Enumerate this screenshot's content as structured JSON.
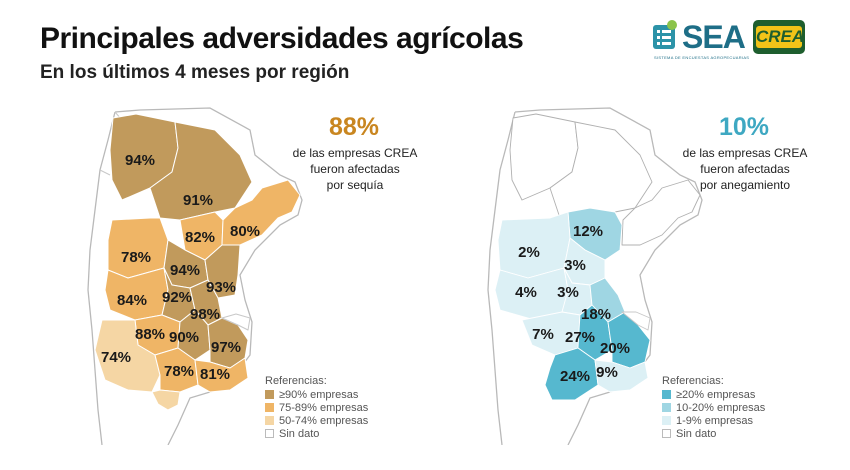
{
  "header": {
    "title": "Principales adversidades agrícolas",
    "subtitle": "En los últimos 4 meses por región"
  },
  "logos": {
    "sea": {
      "word": "SEA",
      "tagline": "SISTEMA DE ENCUESTAS AGROPECUARIAS"
    },
    "crea": {
      "word": "CREA"
    }
  },
  "colors": {
    "drought_high": "#c19a5c",
    "drought_mid": "#efb566",
    "drought_low": "#f5d6a4",
    "flood_high": "#56b8cf",
    "flood_mid": "#9fd6e3",
    "flood_low": "#dcf0f5",
    "no_data": "#ffffff",
    "drought_text": "#c98620",
    "flood_text": "#3ea8c2"
  },
  "drought_panel": {
    "stat_value": "88%",
    "stat_text": [
      "de las empresas CREA",
      "fueron afectadas",
      "por sequía"
    ],
    "legend_title": "Referencias:",
    "legend": [
      {
        "label": "≥90% empresas",
        "color": "#c19a5c"
      },
      {
        "label": "75-89% empresas",
        "color": "#efb566"
      },
      {
        "label": "50-74% empresas",
        "color": "#f5d6a4"
      },
      {
        "label": "Sin dato",
        "color": "#ffffff"
      }
    ],
    "regions": [
      {
        "label": "94%",
        "cls": "high"
      },
      {
        "label": "91%",
        "cls": "high"
      },
      {
        "label": "82%",
        "cls": "mid"
      },
      {
        "label": "80%",
        "cls": "mid"
      },
      {
        "label": "78%",
        "cls": "mid"
      },
      {
        "label": "94%",
        "cls": "high"
      },
      {
        "label": "93%",
        "cls": "high"
      },
      {
        "label": "84%",
        "cls": "mid"
      },
      {
        "label": "92%",
        "cls": "high"
      },
      {
        "label": "98%",
        "cls": "high"
      },
      {
        "label": "88%",
        "cls": "mid"
      },
      {
        "label": "90%",
        "cls": "high"
      },
      {
        "label": "97%",
        "cls": "high"
      },
      {
        "label": "74%",
        "cls": "low"
      },
      {
        "label": "78%",
        "cls": "mid"
      },
      {
        "label": "81%",
        "cls": "mid"
      }
    ]
  },
  "flood_panel": {
    "stat_value": "10%",
    "stat_text": [
      "de las empresas CREA",
      "fueron afectadas",
      "por anegamiento"
    ],
    "legend_title": "Referencias:",
    "legend": [
      {
        "label": "≥20% empresas",
        "color": "#56b8cf"
      },
      {
        "label": "10-20% empresas",
        "color": "#9fd6e3"
      },
      {
        "label": "1-9% empresas",
        "color": "#dcf0f5"
      },
      {
        "label": "Sin dato",
        "color": "#ffffff"
      }
    ],
    "regions": [
      {
        "label": "12%",
        "cls": "mid"
      },
      {
        "label": "2%",
        "cls": "low"
      },
      {
        "label": "3%",
        "cls": "low"
      },
      {
        "label": "4%",
        "cls": "low"
      },
      {
        "label": "3%",
        "cls": "low"
      },
      {
        "label": "18%",
        "cls": "mid"
      },
      {
        "label": "7%",
        "cls": "low"
      },
      {
        "label": "27%",
        "cls": "high"
      },
      {
        "label": "20%",
        "cls": "high"
      },
      {
        "label": "24%",
        "cls": "high"
      },
      {
        "label": "9%",
        "cls": "low"
      }
    ]
  }
}
